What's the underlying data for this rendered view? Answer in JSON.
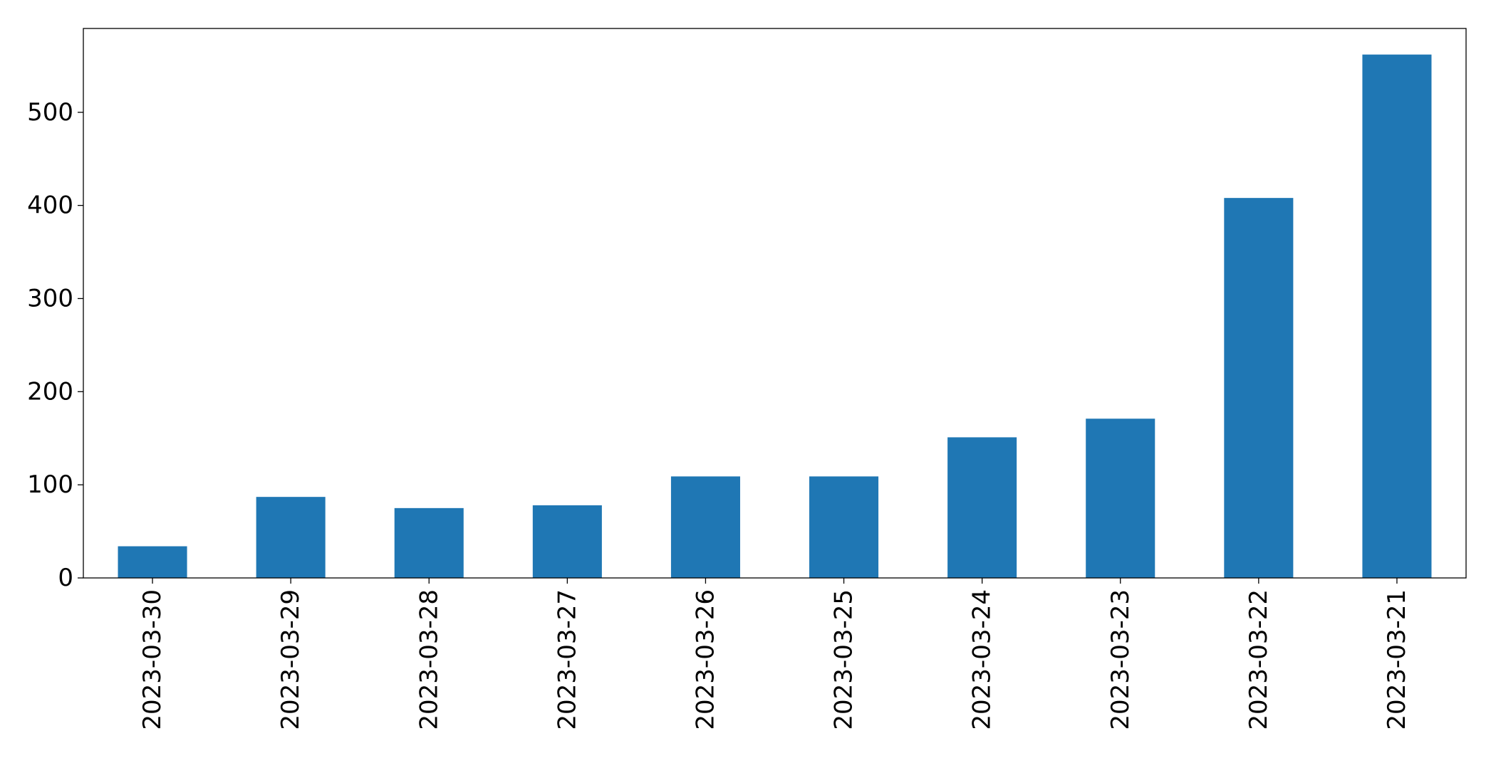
{
  "chart_data": {
    "type": "bar",
    "title": "",
    "xlabel": "",
    "ylabel": "",
    "categories": [
      "2023-03-30",
      "2023-03-29",
      "2023-03-28",
      "2023-03-27",
      "2023-03-26",
      "2023-03-25",
      "2023-03-24",
      "2023-03-23",
      "2023-03-22",
      "2023-03-21"
    ],
    "values": [
      34,
      87,
      75,
      78,
      109,
      109,
      151,
      171,
      408,
      562
    ],
    "ylim": [
      0,
      590
    ],
    "yticks": [
      0,
      100,
      200,
      300,
      400,
      500
    ],
    "grid": false,
    "legend": "none",
    "bar_color": "#1f77b4"
  }
}
